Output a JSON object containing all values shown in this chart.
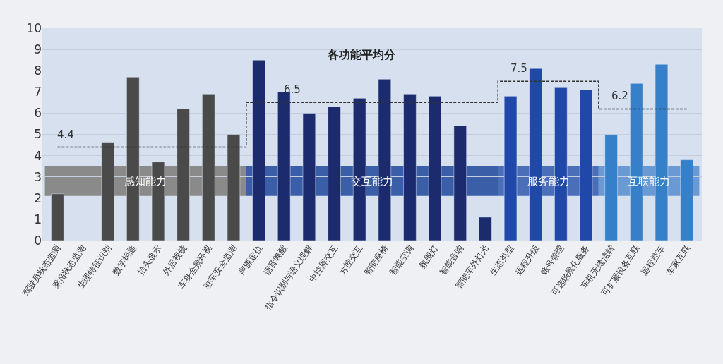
{
  "chart_data": {
    "type": "bar",
    "title": "各功能平均分",
    "categories": [
      "驾驶员状态监测",
      "乘员状态监测",
      "生理特征识别",
      "数字钥匙",
      "抬头显示",
      "外后视镜",
      "车身全景环视",
      "驻车安全监测",
      "声源定位",
      "语音唤醒",
      "指令识别与语义理解",
      "中控屏交互",
      "方控交互",
      "智能座椅",
      "智能空调",
      "氛围灯",
      "智能音响",
      "智能车外灯光",
      "生态类型",
      "远程升级",
      "账号管理",
      "可选场景化服务",
      "车机无缝流转",
      "可扩展设备互联",
      "远程控车",
      "车家互联"
    ],
    "series": [
      {
        "values": [
          2.2,
          null,
          4.6,
          7.7,
          3.7,
          6.2,
          6.9,
          5.0,
          8.5,
          7.0,
          6.0,
          6.3,
          6.7,
          7.6,
          6.9,
          6.8,
          5.4,
          1.1,
          6.8,
          8.1,
          7.2,
          7.1,
          5.0,
          7.4,
          8.3,
          3.8
        ],
        "colors": [
          "#4a4a4a",
          "#4a4a4a",
          "#4a4a4a",
          "#4a4a4a",
          "#4a4a4a",
          "#4a4a4a",
          "#4a4a4a",
          "#4a4a4a",
          "#1b2b6e",
          "#1b2b6e",
          "#1b2b6e",
          "#1b2b6e",
          "#1b2b6e",
          "#1b2b6e",
          "#1b2b6e",
          "#1b2b6e",
          "#1b2b6e",
          "#1b2b6e",
          "#2048a8",
          "#2048a8",
          "#2048a8",
          "#2048a8",
          "#3580c8",
          "#3580c8",
          "#3580c8",
          "#3580c8"
        ]
      },
      {
        "type": "step",
        "color": "#333333",
        "line_style": "dashed",
        "values": [
          4.4,
          4.4,
          4.4,
          4.4,
          4.4,
          4.4,
          4.4,
          4.4,
          6.5,
          6.5,
          6.5,
          6.5,
          6.5,
          6.5,
          6.5,
          6.5,
          6.5,
          6.5,
          7.5,
          7.5,
          7.5,
          7.5,
          6.2,
          6.2,
          6.2,
          6.2
        ]
      }
    ],
    "annotations": [
      {
        "text": "4.4",
        "x": "驾驶员状态监测",
        "y": 4.4
      },
      {
        "text": "6.5",
        "x": "语音唤醒",
        "y": 6.5
      },
      {
        "text": "7.5",
        "x": "生态类型",
        "y": 7.5
      },
      {
        "text": "6.2",
        "x": "车机无缝流转",
        "y": 6.2
      }
    ],
    "bands": [
      {
        "axis": "x",
        "from": "驾驶员状态监测",
        "to": "驻车安全监测",
        "label": "感知能力",
        "color": "#8a8a8a"
      },
      {
        "axis": "x",
        "from": "声源定位",
        "to": "智能车外灯光",
        "label": "交互能力",
        "color": "#3a5fa8"
      },
      {
        "axis": "x",
        "from": "生态类型",
        "to": "可选场景化服务",
        "label": "服务能力",
        "color": "#4a6fb8"
      },
      {
        "axis": "x",
        "from": "车机无缝流转",
        "to": "车家互联",
        "label": "互联能力",
        "color": "#6a9ad4"
      }
    ],
    "ylim": [
      0,
      10
    ],
    "yticks": [
      0,
      1,
      2,
      3,
      4,
      5,
      6,
      7,
      8,
      9,
      10
    ],
    "grid": "y"
  }
}
